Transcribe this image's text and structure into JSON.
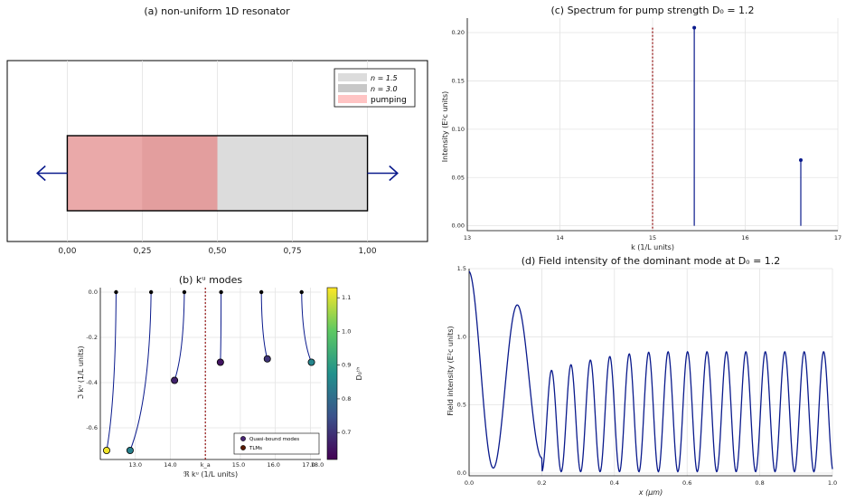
{
  "chart_data": [
    {
      "panel": "a",
      "type": "diagram",
      "title": "(a) non-uniform 1D resonator",
      "xticks": [
        "0,00",
        "0,25",
        "0,50",
        "0,75",
        "1,00"
      ],
      "xlim": [
        -0.2,
        1.2
      ],
      "regions": [
        {
          "from": 0.0,
          "to": 0.5,
          "fill": "#e8a0a0"
        },
        {
          "from": 0.5,
          "to": 1.0,
          "fill": "#d8d8d8"
        }
      ],
      "pump_range": [
        0.0,
        0.5
      ],
      "legend": [
        {
          "label": "n = 1.5",
          "color": "#dcdcdc"
        },
        {
          "label": "n = 3.0",
          "color": "#c8c8c8"
        },
        {
          "label": "pumping",
          "color": "#ffc4c4"
        }
      ],
      "legend_position": "top-right",
      "arrow_color": "#0a1a8c"
    },
    {
      "panel": "c",
      "type": "stem",
      "title": "(c) Spectrum for pump strength D₀ = 1.2",
      "xlabel": "k   (1/L units)",
      "ylabel": "Intensity (E²c units)",
      "xlim": [
        13,
        17
      ],
      "ylim": [
        -0.005,
        0.215
      ],
      "xticks": [
        "13",
        "14",
        "15",
        "16",
        "17"
      ],
      "yticks": [
        "0.00",
        "0.05",
        "0.10",
        "0.15",
        "0.20"
      ],
      "ka": 15.0,
      "points": [
        {
          "x": 15.45,
          "y": 0.205
        },
        {
          "x": 16.6,
          "y": 0.068
        }
      ],
      "color": "#0a1a8c"
    },
    {
      "panel": "b",
      "type": "scatter",
      "title": "(b) kᵘ modes",
      "xlabel": "ℜ kᵘ (1/L units)",
      "ylabel": "ℑ kᵘ (1/L units)",
      "xlim": [
        12.0,
        18.3
      ],
      "ylim": [
        -0.74,
        0.02
      ],
      "xticks": [
        "13.0",
        "14.0",
        "k_a",
        "15.0",
        "16.0",
        "17.0",
        "18.0"
      ],
      "yticks": [
        "0.0",
        "-0.2",
        "-0.4",
        "-0.6"
      ],
      "ka": 15.0,
      "colorbar": {
        "label": "D₀ᵗʰ",
        "range": [
          0.62,
          1.13
        ],
        "ticks": [
          "0.7",
          "0.8",
          "0.9",
          "1.0",
          "1.1"
        ]
      },
      "legend": [
        "Quasi-bound modes",
        "TLMs"
      ],
      "legend_position": "bottom-right",
      "tlms": [
        {
          "x": 12.45,
          "y": 0.0
        },
        {
          "x": 13.45,
          "y": 0.0
        },
        {
          "x": 14.4,
          "y": 0.0
        },
        {
          "x": 15.45,
          "y": 0.0
        },
        {
          "x": 16.6,
          "y": 0.0
        },
        {
          "x": 17.75,
          "y": 0.0
        }
      ],
      "modes": [
        {
          "x": 12.18,
          "y": -0.7,
          "d": 1.12
        },
        {
          "x": 12.85,
          "y": -0.7,
          "d": 0.84
        },
        {
          "x": 14.12,
          "y": -0.39,
          "d": 0.67
        },
        {
          "x": 15.43,
          "y": -0.31,
          "d": 0.65
        },
        {
          "x": 16.77,
          "y": -0.295,
          "d": 0.7
        },
        {
          "x": 18.03,
          "y": -0.31,
          "d": 0.85
        }
      ]
    },
    {
      "panel": "d",
      "type": "line",
      "title": "(d) Field intensity of the dominant mode at D₀ = 1.2",
      "xlabel": "x (μm)",
      "ylabel": "Field intensity (E²c units)",
      "xlim": [
        0,
        1
      ],
      "ylim": [
        -0.02,
        1.5
      ],
      "xticks": [
        "0.0",
        "0.2",
        "0.4",
        "0.6",
        "0.8",
        "1.0"
      ],
      "yticks": [
        "0.0",
        "0.5",
        "1.0",
        "1.5"
      ],
      "color": "#0a1a8c"
    }
  ]
}
